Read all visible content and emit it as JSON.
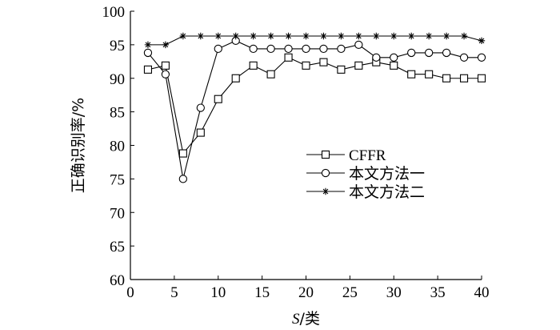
{
  "chart_data": {
    "type": "line",
    "title": "",
    "xlabel_italic": "S",
    "xlabel_rest": "/类",
    "ylabel": "正确识别率/%",
    "xlim": [
      0,
      40
    ],
    "ylim": [
      60,
      100
    ],
    "xticks": [
      0,
      5,
      10,
      15,
      20,
      25,
      30,
      35,
      40
    ],
    "yticks": [
      60,
      65,
      70,
      75,
      80,
      85,
      90,
      95,
      100
    ],
    "grid": false,
    "legend_position": "center-right",
    "series": [
      {
        "name": "CFFR",
        "marker": "square",
        "x": [
          2,
          4,
          6,
          8,
          10,
          12,
          14,
          16,
          18,
          20,
          22,
          24,
          26,
          28,
          30,
          32,
          34,
          36,
          38,
          40
        ],
        "values": [
          91.3,
          91.9,
          78.8,
          81.9,
          86.9,
          90.0,
          91.9,
          90.6,
          93.1,
          91.9,
          92.4,
          91.3,
          91.9,
          92.4,
          91.9,
          90.6,
          90.6,
          90.0,
          90.0,
          90.0
        ]
      },
      {
        "name": "本文方法一",
        "marker": "circle",
        "x": [
          2,
          4,
          6,
          8,
          10,
          12,
          14,
          16,
          18,
          20,
          22,
          24,
          26,
          28,
          30,
          32,
          34,
          36,
          38,
          40
        ],
        "values": [
          93.8,
          90.6,
          75.0,
          85.6,
          94.4,
          95.6,
          94.4,
          94.4,
          94.4,
          94.4,
          94.4,
          94.4,
          95.0,
          93.1,
          93.1,
          93.8,
          93.8,
          93.8,
          93.1,
          93.1
        ]
      },
      {
        "name": "本文方法二",
        "marker": "star",
        "x": [
          2,
          4,
          6,
          8,
          10,
          12,
          14,
          16,
          18,
          20,
          22,
          24,
          26,
          28,
          30,
          32,
          34,
          36,
          38,
          40
        ],
        "values": [
          95.0,
          95.0,
          96.3,
          96.3,
          96.3,
          96.3,
          96.3,
          96.3,
          96.3,
          96.3,
          96.3,
          96.3,
          96.3,
          96.3,
          96.3,
          96.3,
          96.3,
          96.3,
          96.3,
          95.6
        ]
      }
    ]
  }
}
